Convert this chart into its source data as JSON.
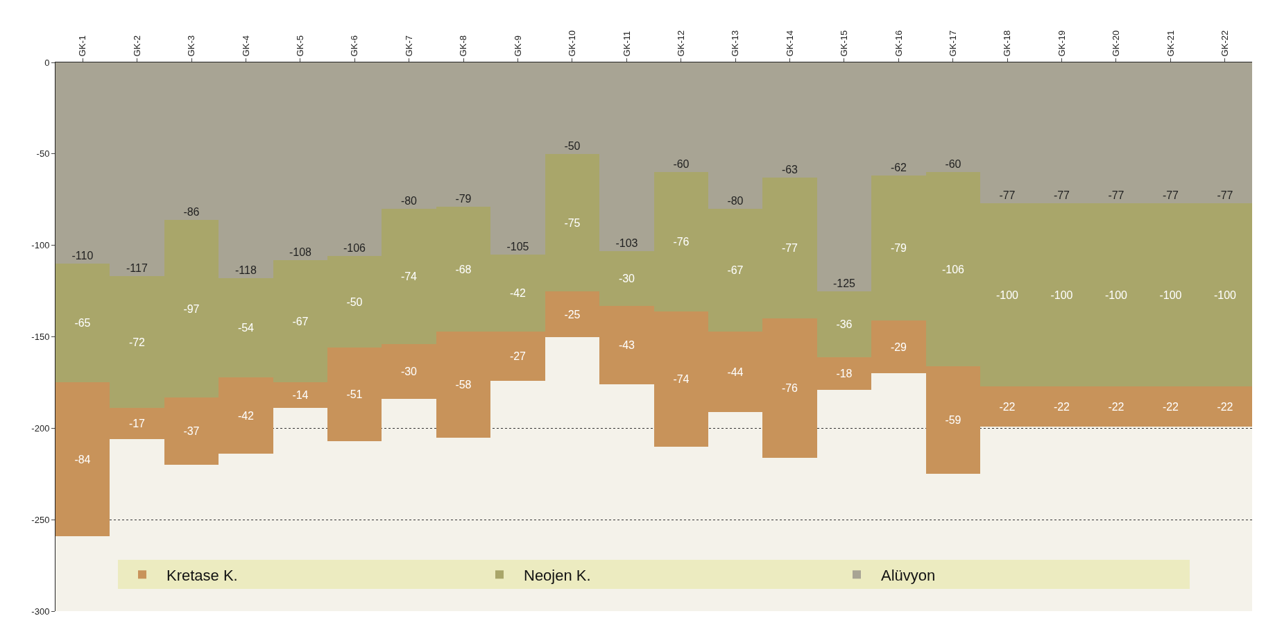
{
  "chart_data": {
    "type": "bar",
    "stacked": true,
    "data_labels": true,
    "grid": "y",
    "legend": "bottom",
    "categories": [
      "GK-1",
      "GK-2",
      "GK-3",
      "GK-4",
      "GK-5",
      "GK-6",
      "GK-7",
      "GK-8",
      "GK-9",
      "GK-10",
      "GK-11",
      "GK-12",
      "GK-13",
      "GK-14",
      "GK-15",
      "GK-16",
      "GK-17",
      "GK-18",
      "GK-19",
      "GK-20",
      "GK-21",
      "GK-22"
    ],
    "ylim": [
      -300,
      0
    ],
    "yticks": [
      0,
      -50,
      -100,
      -150,
      -200,
      -250,
      -300
    ],
    "series": [
      {
        "name": "Alüvyon",
        "color": "#a8a494",
        "values": [
          -110,
          -117,
          -86,
          -118,
          -108,
          -106,
          -80,
          -79,
          -105,
          -50,
          -103,
          -60,
          -80,
          -63,
          -125,
          -62,
          -60,
          -77,
          -77,
          -77,
          -77,
          -77
        ]
      },
      {
        "name": "Neojen K.",
        "color": "#a9a66a",
        "values": [
          -65,
          -72,
          -97,
          -54,
          -67,
          -50,
          -74,
          -68,
          -42,
          -75,
          -30,
          -76,
          -67,
          -77,
          -36,
          -79,
          -106,
          -100,
          -100,
          -100,
          -100,
          -100
        ]
      },
      {
        "name": "Kretase K.",
        "color": "#c8935a",
        "values": [
          -84,
          -17,
          -37,
          -42,
          -14,
          -51,
          -30,
          -58,
          -27,
          -25,
          -43,
          -74,
          -44,
          -76,
          -18,
          -29,
          -59,
          -22,
          -22,
          -22,
          -22,
          -22
        ]
      }
    ]
  }
}
